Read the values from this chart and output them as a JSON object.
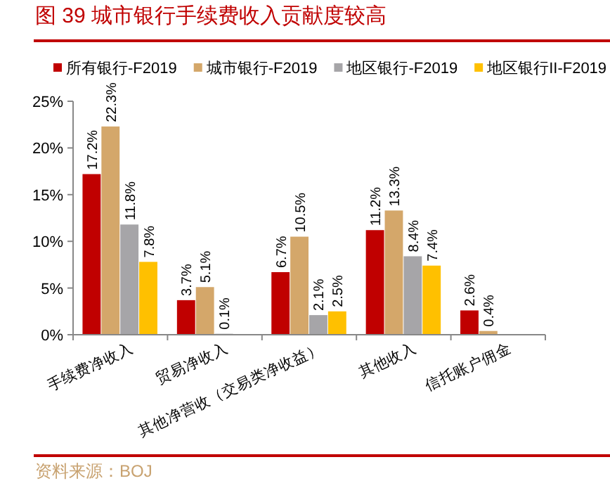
{
  "chart_data": {
    "type": "bar",
    "title": "图 39   城市银行手续费收入贡献度较高",
    "categories": [
      "手续费净收入",
      "贸易净收入",
      "其他净营收（交易类净收益）",
      "其他收入",
      "信托账户佣金"
    ],
    "series": [
      {
        "name": "所有银行-F2019",
        "color": "#c00000",
        "values": [
          17.2,
          3.7,
          6.7,
          11.2,
          2.6
        ],
        "value_labels": [
          "17.2%",
          "3.7%",
          "6.7%",
          "11.2%",
          "2.6%"
        ]
      },
      {
        "name": "城市银行-F2019",
        "color": "#d4a76a",
        "values": [
          22.3,
          5.1,
          10.5,
          13.3,
          0.4
        ],
        "value_labels": [
          "22.3%",
          "5.1%",
          "10.5%",
          "13.3%",
          "0.4%"
        ]
      },
      {
        "name": "地区银行-F2019",
        "color": "#a6a5a8",
        "values": [
          11.8,
          0.1,
          2.1,
          8.4,
          null
        ],
        "value_labels": [
          "11.8%",
          "0.1%",
          "2.1%",
          "8.4%",
          null
        ]
      },
      {
        "name": "地区银行II-F2019",
        "color": "#ffc000",
        "values": [
          7.8,
          null,
          2.5,
          7.4,
          null
        ],
        "value_labels": [
          "7.8%",
          null,
          "2.5%",
          "7.4%",
          null
        ]
      }
    ],
    "ylim": [
      0,
      25
    ],
    "yticks": [
      {
        "value": 0,
        "label": "0%"
      },
      {
        "value": 5,
        "label": "5%"
      },
      {
        "value": 10,
        "label": "10%"
      },
      {
        "value": 15,
        "label": "15%"
      },
      {
        "value": 20,
        "label": "20%"
      },
      {
        "value": 25,
        "label": "25%"
      }
    ],
    "legend": "top",
    "grid": false,
    "annotations": [
      "资料来源：BOJ"
    ]
  }
}
